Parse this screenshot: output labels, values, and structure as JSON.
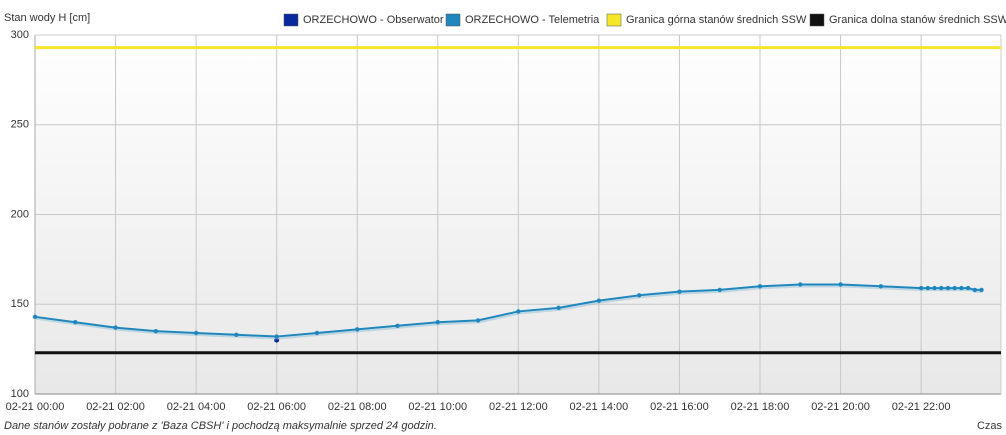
{
  "chart_data": {
    "type": "line",
    "y_label": "Stan wody H [cm]",
    "x_label": "Czas",
    "note": "Dane stanów zostały pobrane z 'Baza CBSH' i pochodzą maksymalnie sprzed 24 godzin.",
    "xlim": [
      "02-21 00:00",
      "02-21 23:59"
    ],
    "xticks": [
      "02-21 00:00",
      "02-21 02:00",
      "02-21 04:00",
      "02-21 06:00",
      "02-21 08:00",
      "02-21 10:00",
      "02-21 12:00",
      "02-21 14:00",
      "02-21 16:00",
      "02-21 18:00",
      "02-21 20:00",
      "02-21 22:00"
    ],
    "ylim": [
      100,
      300
    ],
    "yticks": [
      100,
      150,
      200,
      250,
      300
    ],
    "grid": true,
    "legend": "top",
    "series": [
      {
        "name": "ORZECHOWO - Obserwator",
        "color": "#0a2a9c",
        "x": [
          "02-21 06:00"
        ],
        "values": [
          130
        ]
      },
      {
        "name": "ORZECHOWO - Telemetria",
        "color": "#1f87bd",
        "x": [
          "02-21 00:00",
          "02-21 01:00",
          "02-21 02:00",
          "02-21 03:00",
          "02-21 04:00",
          "02-21 05:00",
          "02-21 06:00",
          "02-21 07:00",
          "02-21 08:00",
          "02-21 09:00",
          "02-21 10:00",
          "02-21 11:00",
          "02-21 12:00",
          "02-21 13:00",
          "02-21 14:00",
          "02-21 15:00",
          "02-21 16:00",
          "02-21 17:00",
          "02-21 18:00",
          "02-21 19:00",
          "02-21 20:00",
          "02-21 21:00",
          "02-21 22:00",
          "02-21 22:10",
          "02-21 22:20",
          "02-21 22:30",
          "02-21 22:40",
          "02-21 22:50",
          "02-21 23:00",
          "02-21 23:10",
          "02-21 23:20",
          "02-21 23:30"
        ],
        "values": [
          143,
          140,
          137,
          135,
          134,
          133,
          132,
          134,
          136,
          138,
          140,
          141,
          146,
          148,
          152,
          155,
          157,
          158,
          160,
          161,
          161,
          160,
          159,
          159,
          159,
          159,
          159,
          159,
          159,
          159,
          158,
          158
        ]
      },
      {
        "name": "Granica górna stanów średnich SSW",
        "color": "#f5e62a",
        "x": [
          "02-21 00:00",
          "02-21 23:59"
        ],
        "values": [
          293,
          293
        ]
      },
      {
        "name": "Granica dolna stanów średnich SSW",
        "color": "#111111",
        "x": [
          "02-21 00:00",
          "02-21 23:59"
        ],
        "values": [
          123,
          123
        ]
      }
    ]
  }
}
